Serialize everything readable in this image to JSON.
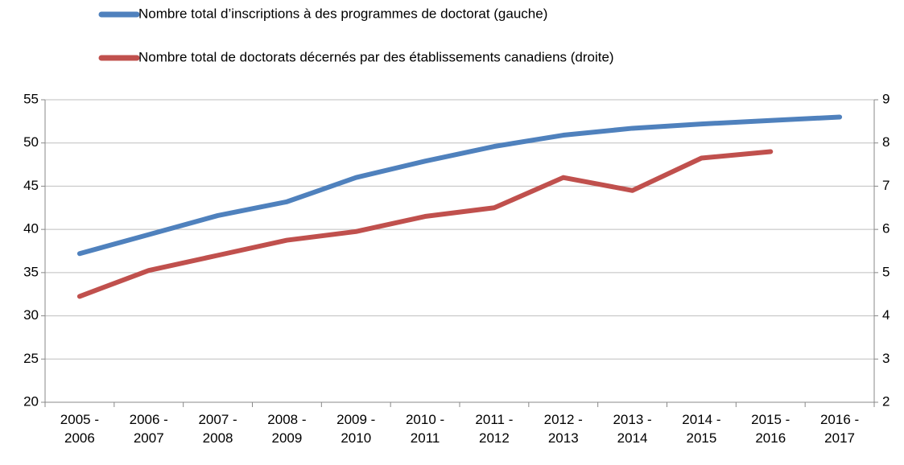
{
  "chart_data": {
    "type": "line",
    "categories": [
      "2005 - 2006",
      "2006 - 2007",
      "2007 - 2008",
      "2008 - 2009",
      "2009 - 2010",
      "2010 - 2011",
      "2011 - 2012",
      "2012 - 2013",
      "2013 - 2014",
      "2014 - 2015",
      "2015 - 2016",
      "2016 - 2017"
    ],
    "series": [
      {
        "name": "Nombre total d’inscriptions à des programmes de doctorat (gauche)",
        "color": "#4f81bd",
        "values": [
          37.2,
          39.4,
          41.6,
          43.2,
          46.0,
          47.9,
          49.6,
          50.9,
          51.7,
          52.2,
          52.6,
          53.0
        ]
      },
      {
        "name": "Nombre total de doctorats décernés par des établissements canadiens (droite)",
        "color": "#c0504d",
        "axis": "y2",
        "values": [
          4.45,
          5.05,
          5.4,
          5.75,
          5.95,
          6.3,
          6.5,
          7.2,
          6.9,
          7.65,
          7.8,
          null
        ]
      }
    ],
    "ylim": [
      20,
      55
    ],
    "yticks": [
      20,
      25,
      30,
      35,
      40,
      45,
      50,
      55
    ],
    "y2lim": [
      2,
      9
    ],
    "y2ticks": [
      2,
      3,
      4,
      5,
      6,
      7,
      8,
      9
    ],
    "grid": true,
    "legend": "top"
  }
}
